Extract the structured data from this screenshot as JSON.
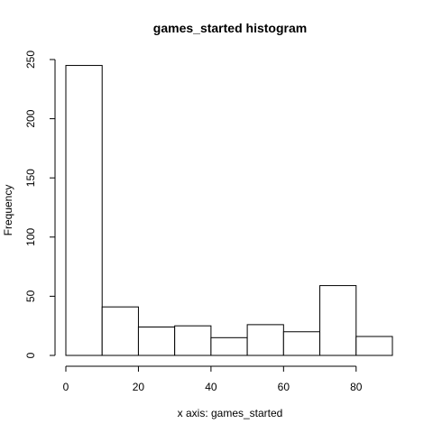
{
  "chart_data": {
    "type": "bar",
    "title": "games_started histogram",
    "xlabel": "x axis: games_started",
    "ylabel": "Frequency",
    "bin_edges": [
      0,
      10,
      20,
      30,
      40,
      50,
      60,
      70,
      80,
      90
    ],
    "values": [
      245,
      41,
      24,
      25,
      15,
      26,
      20,
      59,
      16
    ],
    "x_ticks": [
      0,
      20,
      40,
      60,
      80
    ],
    "y_ticks": [
      0,
      50,
      100,
      150,
      200,
      250
    ],
    "xlim": [
      0,
      90
    ],
    "ylim": [
      0,
      250
    ],
    "grid": false
  }
}
